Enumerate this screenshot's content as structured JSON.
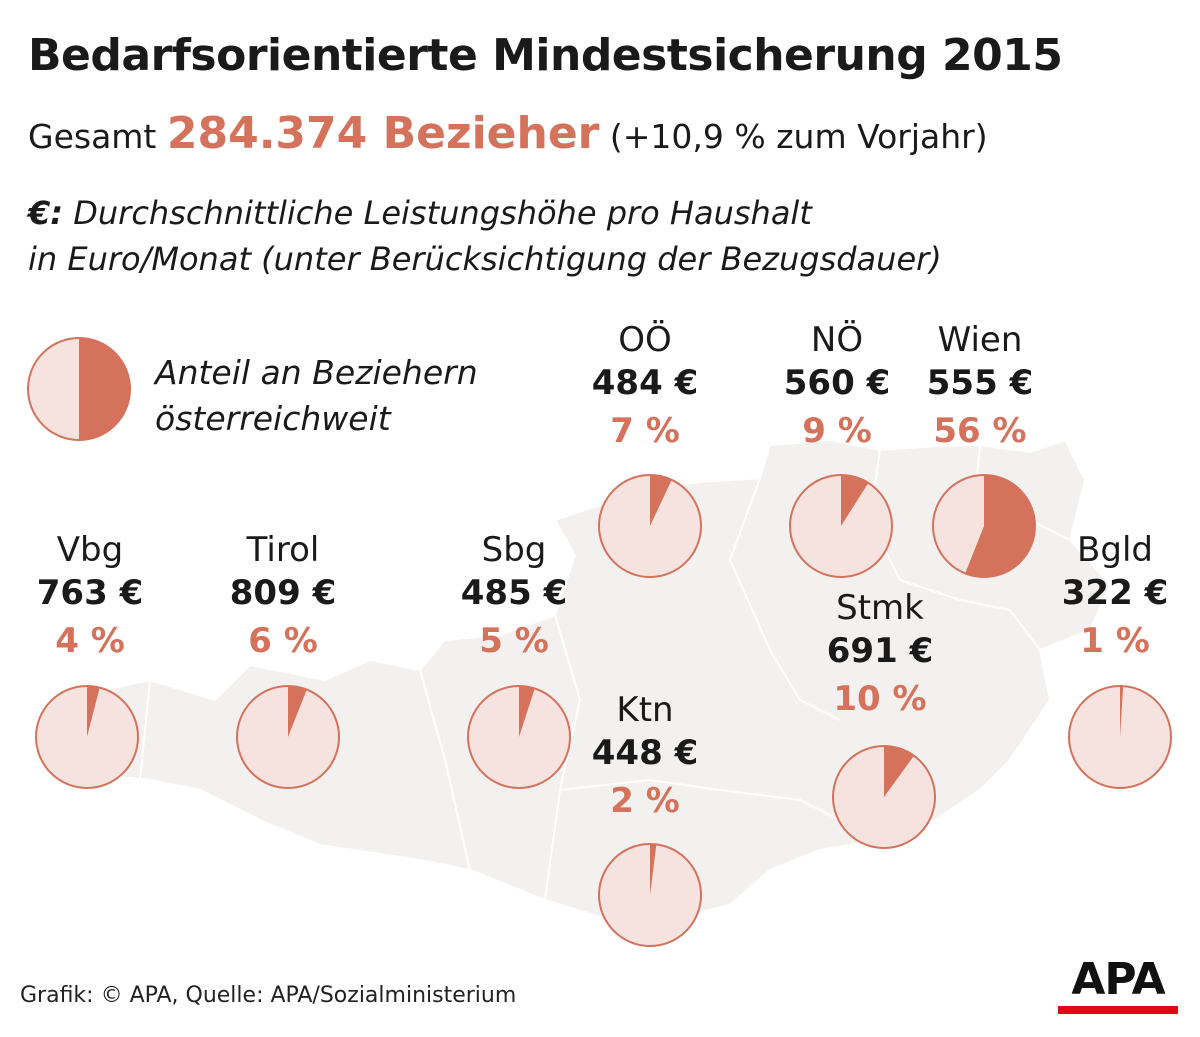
{
  "title": "Bedarfsorientierte Mindestsicherung 2015",
  "subtitle": {
    "prefix": "Gesamt",
    "total": "284.374 Bezieher",
    "suffix": "(+10,9 % zum Vorjahr)"
  },
  "note": {
    "symbol": "€:",
    "line1": "Durchschnittliche Leistungshöhe pro Haushalt",
    "line2": "in Euro/Monat (unter Berücksichtigung der Bezugsdauer)"
  },
  "legend": {
    "line1": "Anteil an Beziehern",
    "line2": "österreichweit",
    "value": 0.5
  },
  "colors": {
    "accent": "#d4725b",
    "pie_background": "#f6e3df",
    "map_fill": "#f2f1ef",
    "map_stroke": "#ffffff"
  },
  "chart_data": {
    "type": "pie",
    "title": "Bedarfsorientierte Mindestsicherung 2015",
    "unit_value": "€ pro Haushalt/Monat",
    "unit_share": "% der Bezieher österreichweit",
    "regions": [
      {
        "id": "vbg",
        "name": "Vbg",
        "value_label": "763 €",
        "value": 763,
        "share_label": "4 %",
        "share": 4
      },
      {
        "id": "tirol",
        "name": "Tirol",
        "value_label": "809 €",
        "value": 809,
        "share_label": "6 %",
        "share": 6
      },
      {
        "id": "sbg",
        "name": "Sbg",
        "value_label": "485 €",
        "value": 485,
        "share_label": "5 %",
        "share": 5
      },
      {
        "id": "ooe",
        "name": "OÖ",
        "value_label": "484 €",
        "value": 484,
        "share_label": "7 %",
        "share": 7
      },
      {
        "id": "noe",
        "name": "NÖ",
        "value_label": "560 €",
        "value": 560,
        "share_label": "9 %",
        "share": 9
      },
      {
        "id": "wien",
        "name": "Wien",
        "value_label": "555 €",
        "value": 555,
        "share_label": "56 %",
        "share": 56
      },
      {
        "id": "bgld",
        "name": "Bgld",
        "value_label": "322 €",
        "value": 322,
        "share_label": "1 %",
        "share": 1
      },
      {
        "id": "stmk",
        "name": "Stmk",
        "value_label": "691 €",
        "value": 691,
        "share_label": "10 %",
        "share": 10
      },
      {
        "id": "ktn",
        "name": "Ktn",
        "value_label": "448 €",
        "value": 448,
        "share_label": "2 %",
        "share": 2
      }
    ]
  },
  "footer": "Grafik: © APA, Quelle: APA/Sozialministerium",
  "logo": "APA"
}
